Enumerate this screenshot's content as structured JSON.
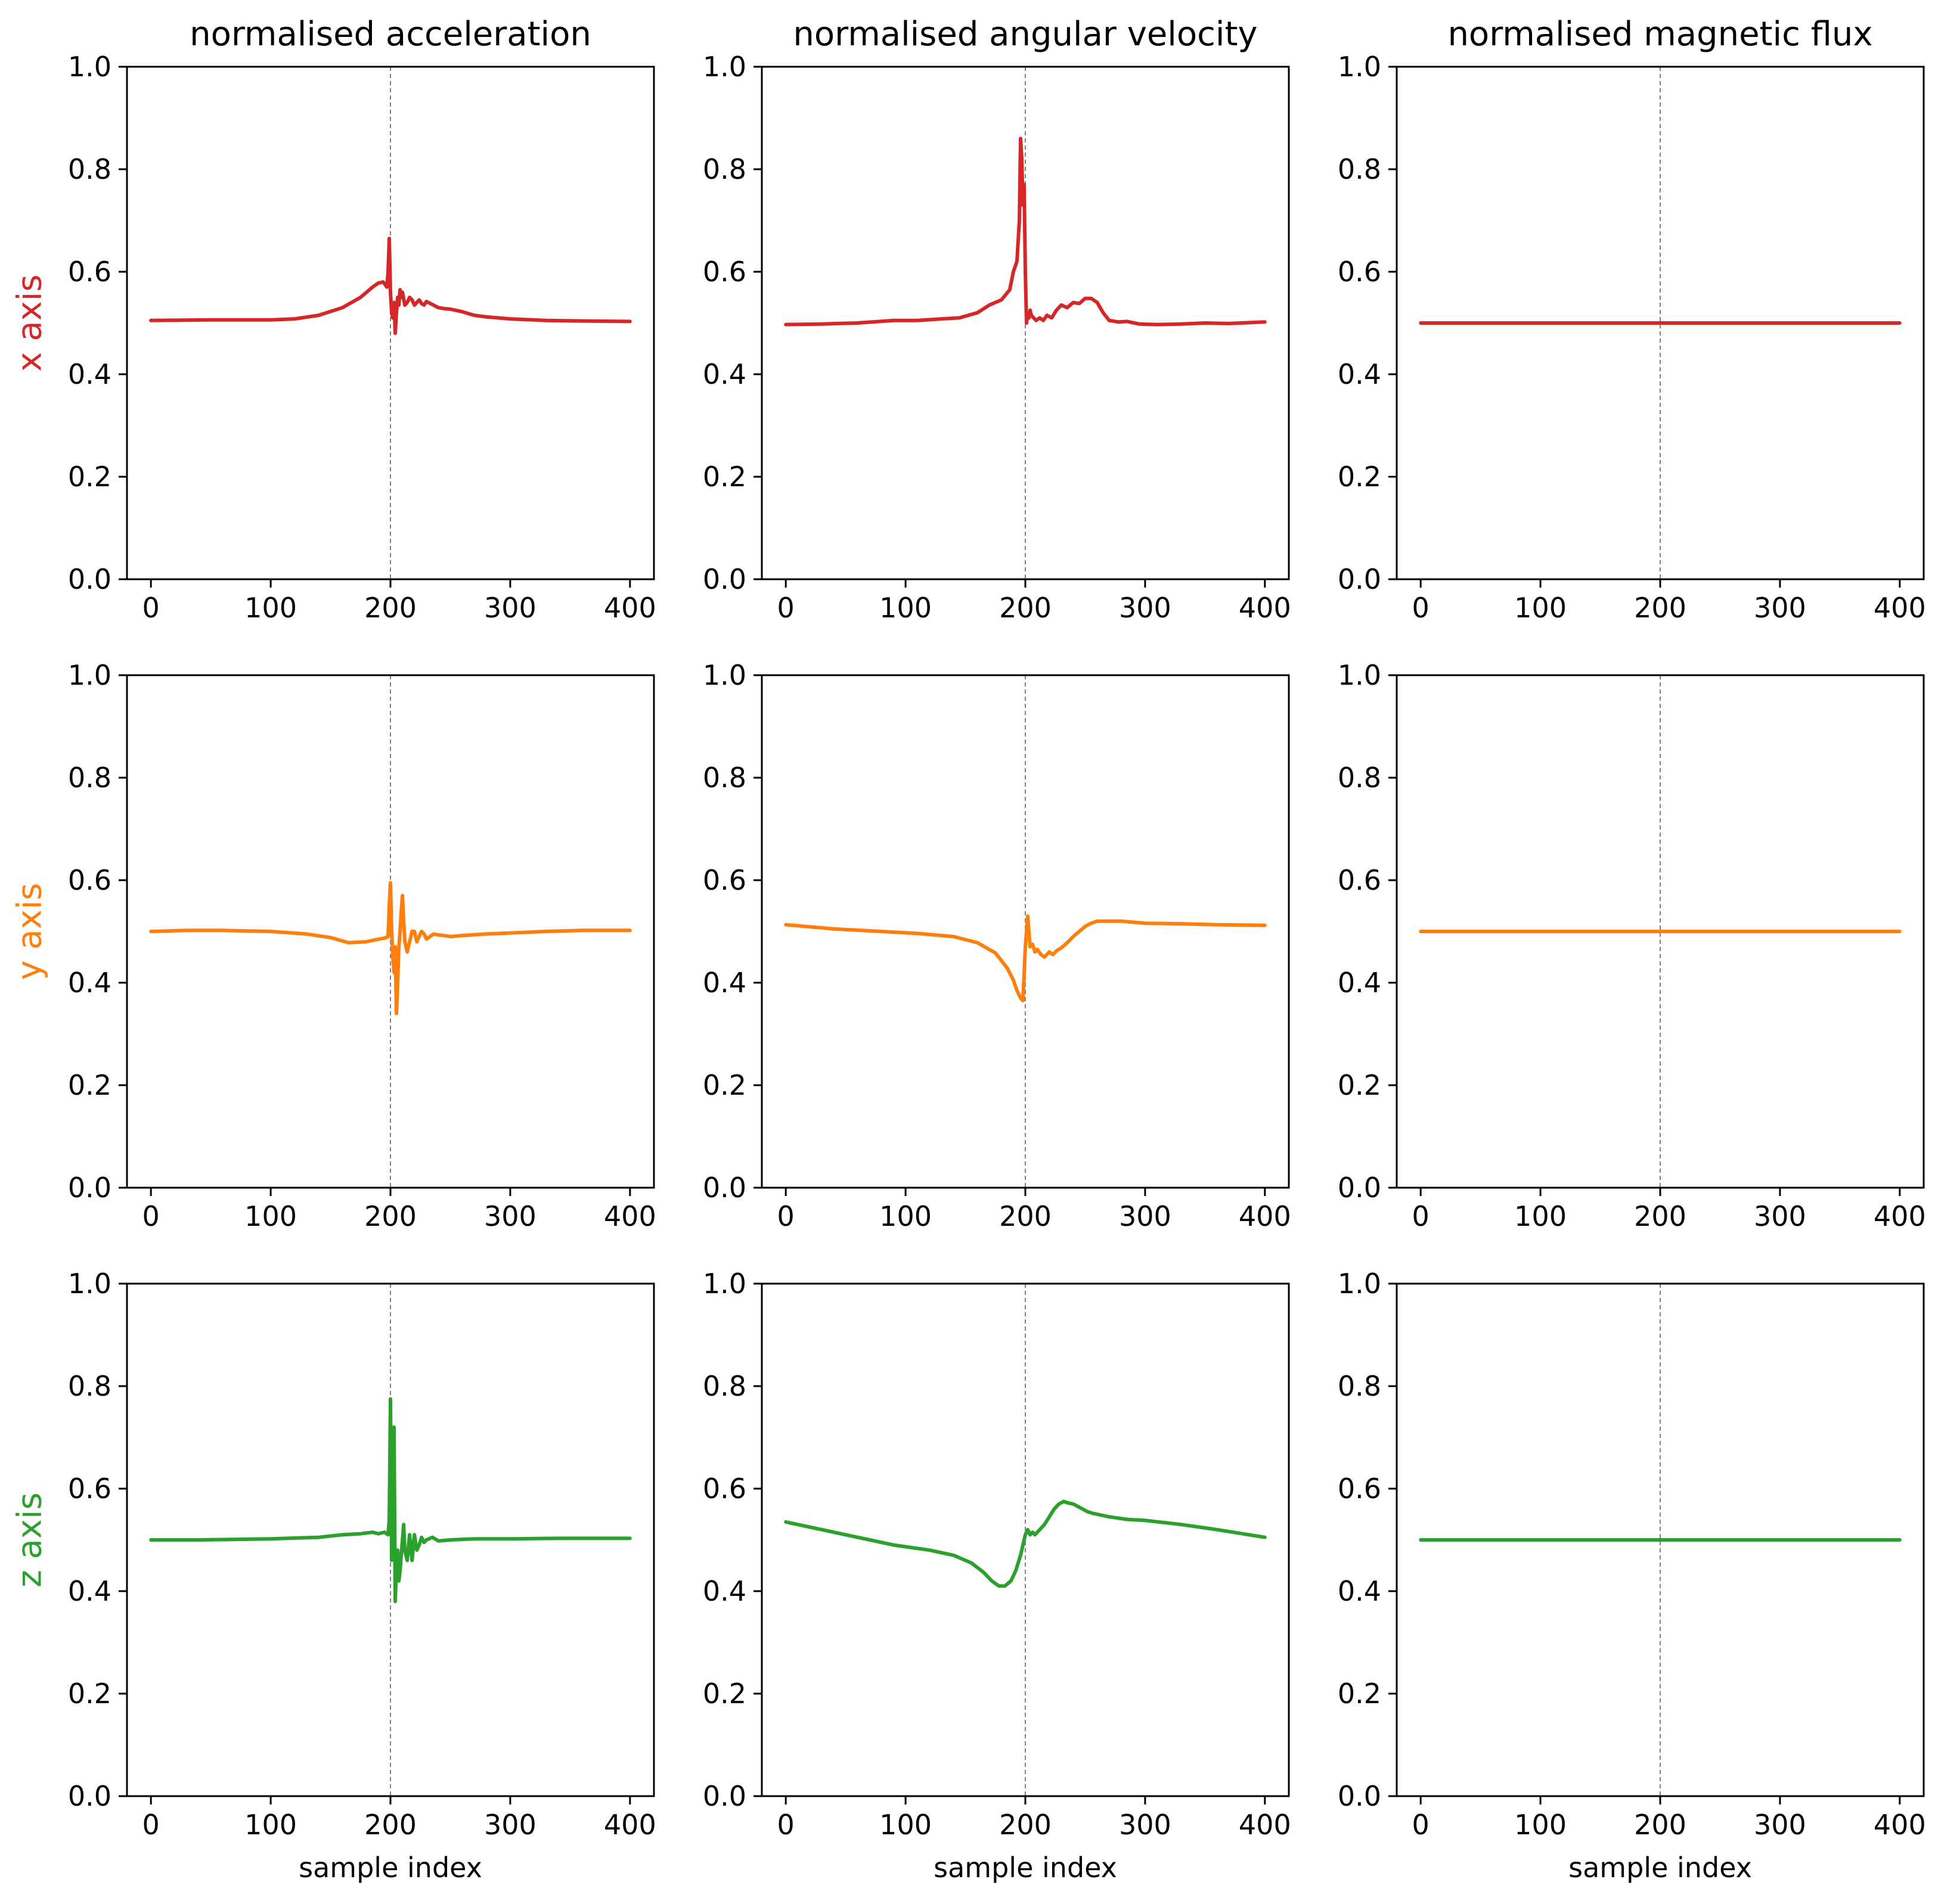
{
  "chart_data": {
    "type": "line",
    "layout": "3x3 grid",
    "columns": [
      {
        "title": "normalised acceleration"
      },
      {
        "title": "normalised angular velocity"
      },
      {
        "title": "normalised magnetic flux"
      }
    ],
    "rows": [
      {
        "label": "x axis",
        "color": "#d62728"
      },
      {
        "label": "y axis",
        "color": "#ff7f0e"
      },
      {
        "label": "z axis",
        "color": "#2ca02c"
      }
    ],
    "xlabel": "sample index",
    "xlim": [
      -20,
      420
    ],
    "ylim": [
      0,
      1
    ],
    "xticks": [
      0,
      100,
      200,
      300,
      400
    ],
    "xtick_labels": [
      "0",
      "100",
      "200",
      "300",
      "400"
    ],
    "yticks": [
      0,
      0.2,
      0.4,
      0.6,
      0.8,
      1.0
    ],
    "ytick_labels": [
      "0.0",
      "0.2",
      "0.4",
      "0.6",
      "0.8",
      "1.0"
    ],
    "event_marker_x": 200,
    "panels": [
      {
        "row": 0,
        "col": 0,
        "x": [
          0,
          50,
          100,
          120,
          140,
          160,
          175,
          185,
          190,
          194,
          197,
          198,
          199,
          200,
          201,
          202,
          203,
          204,
          205,
          206,
          207,
          208,
          209,
          210,
          212,
          214,
          216,
          218,
          220,
          222,
          224,
          226,
          228,
          230,
          235,
          240,
          245,
          250,
          260,
          270,
          280,
          300,
          330,
          360,
          400
        ],
        "y": [
          0.505,
          0.506,
          0.506,
          0.508,
          0.515,
          0.53,
          0.55,
          0.57,
          0.578,
          0.58,
          0.57,
          0.6,
          0.665,
          0.56,
          0.52,
          0.51,
          0.54,
          0.48,
          0.52,
          0.55,
          0.535,
          0.565,
          0.55,
          0.56,
          0.535,
          0.54,
          0.55,
          0.545,
          0.535,
          0.54,
          0.545,
          0.538,
          0.535,
          0.542,
          0.536,
          0.53,
          0.528,
          0.527,
          0.522,
          0.515,
          0.512,
          0.508,
          0.505,
          0.504,
          0.503
        ]
      },
      {
        "row": 0,
        "col": 1,
        "x": [
          0,
          30,
          60,
          90,
          110,
          130,
          145,
          160,
          170,
          180,
          187,
          190,
          193,
          195,
          196,
          197,
          198,
          199,
          200,
          201,
          202,
          203,
          204,
          205,
          207,
          209,
          212,
          215,
          218,
          222,
          226,
          230,
          235,
          240,
          245,
          250,
          255,
          260,
          265,
          270,
          278,
          285,
          295,
          310,
          330,
          350,
          370,
          400
        ],
        "y": [
          0.497,
          0.498,
          0.5,
          0.505,
          0.505,
          0.508,
          0.51,
          0.52,
          0.535,
          0.545,
          0.565,
          0.6,
          0.62,
          0.7,
          0.86,
          0.82,
          0.73,
          0.77,
          0.6,
          0.5,
          0.52,
          0.51,
          0.525,
          0.515,
          0.51,
          0.505,
          0.51,
          0.505,
          0.515,
          0.51,
          0.525,
          0.535,
          0.53,
          0.54,
          0.538,
          0.548,
          0.548,
          0.54,
          0.52,
          0.505,
          0.502,
          0.503,
          0.498,
          0.497,
          0.498,
          0.5,
          0.499,
          0.502
        ]
      },
      {
        "row": 0,
        "col": 2,
        "x": [
          0,
          400
        ],
        "y": [
          0.5,
          0.5
        ]
      },
      {
        "row": 1,
        "col": 0,
        "x": [
          0,
          30,
          60,
          100,
          130,
          150,
          165,
          180,
          190,
          195,
          198,
          199,
          200,
          201,
          202,
          203,
          204,
          205,
          206,
          207,
          208,
          209,
          210,
          211,
          212,
          214,
          216,
          218,
          220,
          222,
          224,
          226,
          228,
          230,
          233,
          236,
          240,
          245,
          250,
          260,
          280,
          300,
          330,
          360,
          400
        ],
        "y": [
          0.5,
          0.502,
          0.502,
          0.5,
          0.495,
          0.488,
          0.478,
          0.48,
          0.485,
          0.487,
          0.49,
          0.55,
          0.595,
          0.5,
          0.45,
          0.42,
          0.47,
          0.34,
          0.4,
          0.47,
          0.5,
          0.54,
          0.57,
          0.52,
          0.48,
          0.46,
          0.48,
          0.5,
          0.5,
          0.48,
          0.49,
          0.5,
          0.495,
          0.485,
          0.49,
          0.495,
          0.493,
          0.492,
          0.49,
          0.492,
          0.495,
          0.497,
          0.5,
          0.502,
          0.502
        ]
      },
      {
        "row": 1,
        "col": 1,
        "x": [
          0,
          40,
          80,
          110,
          140,
          160,
          175,
          185,
          190,
          193,
          196,
          198,
          200,
          202,
          204,
          206,
          208,
          210,
          213,
          216,
          220,
          223,
          226,
          230,
          235,
          240,
          245,
          250,
          255,
          260,
          270,
          280,
          300,
          330,
          360,
          400
        ],
        "y": [
          0.513,
          0.505,
          0.5,
          0.496,
          0.49,
          0.478,
          0.458,
          0.428,
          0.405,
          0.385,
          0.37,
          0.365,
          0.47,
          0.53,
          0.47,
          0.475,
          0.46,
          0.465,
          0.455,
          0.45,
          0.46,
          0.455,
          0.462,
          0.468,
          0.478,
          0.49,
          0.5,
          0.51,
          0.516,
          0.52,
          0.52,
          0.52,
          0.516,
          0.515,
          0.513,
          0.512
        ]
      },
      {
        "row": 1,
        "col": 2,
        "x": [
          0,
          400
        ],
        "y": [
          0.5,
          0.5
        ]
      },
      {
        "row": 2,
        "col": 0,
        "x": [
          0,
          40,
          100,
          140,
          160,
          175,
          185,
          190,
          195,
          198,
          199,
          200,
          201,
          202,
          203,
          204,
          205,
          206,
          207,
          208,
          209,
          210,
          211,
          212,
          214,
          216,
          218,
          220,
          222,
          224,
          226,
          228,
          230,
          235,
          240,
          250,
          270,
          300,
          340,
          400
        ],
        "y": [
          0.5,
          0.5,
          0.502,
          0.505,
          0.51,
          0.512,
          0.515,
          0.512,
          0.515,
          0.51,
          0.54,
          0.775,
          0.46,
          0.55,
          0.72,
          0.38,
          0.45,
          0.48,
          0.42,
          0.44,
          0.47,
          0.5,
          0.53,
          0.48,
          0.46,
          0.51,
          0.46,
          0.51,
          0.48,
          0.49,
          0.505,
          0.495,
          0.5,
          0.505,
          0.498,
          0.5,
          0.502,
          0.502,
          0.503,
          0.503
        ]
      },
      {
        "row": 2,
        "col": 1,
        "x": [
          0,
          30,
          60,
          90,
          120,
          140,
          155,
          165,
          172,
          178,
          183,
          188,
          192,
          196,
          198,
          200,
          202,
          204,
          206,
          208,
          212,
          216,
          220,
          224,
          228,
          232,
          236,
          240,
          244,
          248,
          252,
          256,
          260,
          270,
          285,
          300,
          330,
          360,
          400
        ],
        "y": [
          0.535,
          0.52,
          0.505,
          0.49,
          0.48,
          0.47,
          0.455,
          0.437,
          0.42,
          0.41,
          0.41,
          0.42,
          0.44,
          0.47,
          0.49,
          0.51,
          0.52,
          0.51,
          0.515,
          0.51,
          0.52,
          0.53,
          0.545,
          0.56,
          0.57,
          0.575,
          0.572,
          0.57,
          0.565,
          0.56,
          0.555,
          0.552,
          0.55,
          0.545,
          0.54,
          0.538,
          0.53,
          0.52,
          0.505
        ]
      },
      {
        "row": 2,
        "col": 2,
        "x": [
          0,
          400
        ],
        "y": [
          0.5,
          0.5
        ]
      }
    ]
  }
}
